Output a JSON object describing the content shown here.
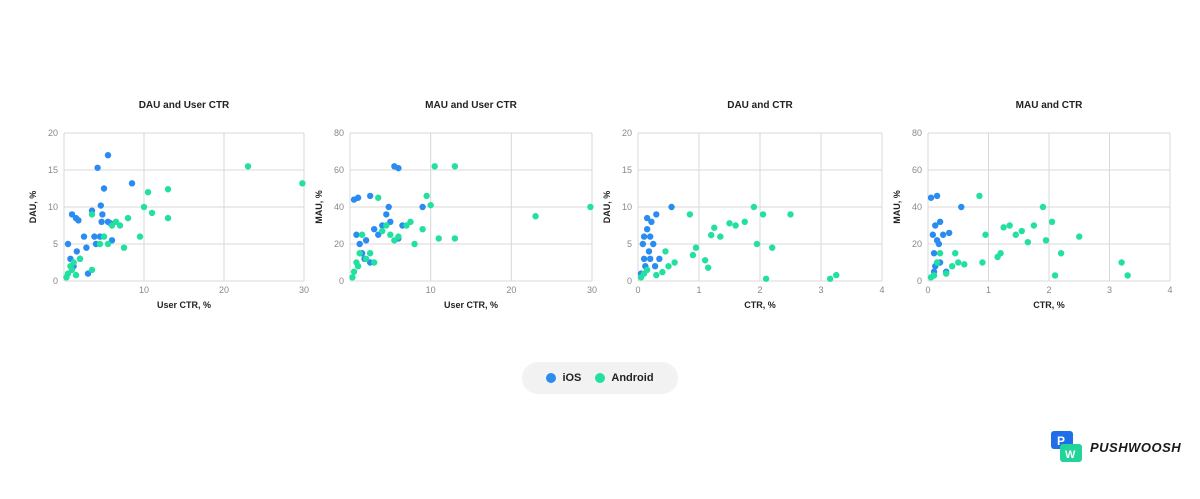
{
  "colors": {
    "ios": "#2a8cf0",
    "android": "#22e0a0",
    "brand_blue": "#1e6fe8",
    "brand_green": "#22d39a"
  },
  "legend": {
    "ios": "iOS",
    "android": "Android"
  },
  "brand": {
    "name": "PUSHWOOSH",
    "logo_letters": [
      "P",
      "W"
    ]
  },
  "chart_data": [
    {
      "type": "scatter",
      "title": "DAU and User CTR",
      "xlabel": "User CTR, %",
      "ylabel": "DAU, %",
      "xlim": [
        0,
        30
      ],
      "ylim": [
        0,
        20
      ],
      "xticks": [
        10,
        20,
        30
      ],
      "yticks": [
        0,
        5,
        10,
        15,
        20
      ],
      "grid": true,
      "series": [
        {
          "name": "iOS",
          "color": "#2a8cf0",
          "points": [
            [
              0.5,
              5
            ],
            [
              0.8,
              3
            ],
            [
              1,
              9
            ],
            [
              1.2,
              2
            ],
            [
              1.5,
              8.5
            ],
            [
              1.6,
              4
            ],
            [
              2,
              3
            ],
            [
              2.5,
              6
            ],
            [
              2.8,
              4.5
            ],
            [
              3,
              1
            ],
            [
              3.5,
              9.5
            ],
            [
              3.8,
              6
            ],
            [
              4,
              5
            ],
            [
              4.2,
              15.3
            ],
            [
              4.5,
              6
            ],
            [
              4.6,
              10.2
            ],
            [
              4.7,
              8
            ],
            [
              5,
              12.5
            ],
            [
              5.5,
              17
            ],
            [
              5.5,
              8
            ],
            [
              5.8,
              7.8
            ],
            [
              6,
              5.5
            ],
            [
              8.5,
              13.2
            ],
            [
              1.8,
              8.2
            ],
            [
              4.8,
              9
            ]
          ]
        },
        {
          "name": "Android",
          "color": "#22e0a0",
          "points": [
            [
              0.3,
              0.5
            ],
            [
              0.5,
              1
            ],
            [
              0.8,
              2
            ],
            [
              1,
              1.5
            ],
            [
              1.2,
              2.5
            ],
            [
              1.5,
              0.8
            ],
            [
              2,
              3
            ],
            [
              3.5,
              1.5
            ],
            [
              4.5,
              5
            ],
            [
              5,
              6
            ],
            [
              5.5,
              5
            ],
            [
              6,
              7.5
            ],
            [
              6.5,
              8
            ],
            [
              7,
              7.5
            ],
            [
              7.5,
              4.5
            ],
            [
              8,
              8.5
            ],
            [
              9.5,
              6
            ],
            [
              10,
              10
            ],
            [
              10.5,
              12
            ],
            [
              11,
              9.2
            ],
            [
              13,
              12.4
            ],
            [
              13,
              8.5
            ],
            [
              23,
              15.5
            ],
            [
              29.8,
              13.2
            ],
            [
              3.5,
              9
            ]
          ]
        }
      ]
    },
    {
      "type": "scatter",
      "title": "MAU and User CTR",
      "xlabel": "User CTR, %",
      "ylabel": "MAU, %",
      "xlim": [
        0,
        30
      ],
      "ylim": [
        0,
        80
      ],
      "xticks": [
        10,
        20,
        30
      ],
      "yticks": [
        0,
        20,
        40,
        60,
        80
      ],
      "grid": true,
      "series": [
        {
          "name": "iOS",
          "color": "#2a8cf0",
          "points": [
            [
              0.5,
              44
            ],
            [
              0.8,
              25
            ],
            [
              1,
              45
            ],
            [
              1.2,
              20
            ],
            [
              1.5,
              15
            ],
            [
              2,
              22
            ],
            [
              2.5,
              46
            ],
            [
              2.5,
              10
            ],
            [
              3,
              28
            ],
            [
              3.5,
              25
            ],
            [
              4,
              30
            ],
            [
              4.5,
              36
            ],
            [
              4.8,
              40
            ],
            [
              5,
              32
            ],
            [
              5.5,
              62
            ],
            [
              6,
              61
            ],
            [
              6,
              23
            ],
            [
              6.5,
              30
            ],
            [
              9,
              40
            ],
            [
              1.8,
              12
            ]
          ]
        },
        {
          "name": "Android",
          "color": "#22e0a0",
          "points": [
            [
              0.3,
              2
            ],
            [
              0.5,
              5
            ],
            [
              0.8,
              10
            ],
            [
              1,
              8
            ],
            [
              1.2,
              15
            ],
            [
              1.5,
              25
            ],
            [
              2,
              12
            ],
            [
              2.5,
              15
            ],
            [
              3,
              10
            ],
            [
              3.5,
              45
            ],
            [
              4,
              27
            ],
            [
              4.5,
              30
            ],
            [
              5,
              25
            ],
            [
              5.5,
              22
            ],
            [
              6,
              24
            ],
            [
              7,
              30
            ],
            [
              7.5,
              32
            ],
            [
              8,
              20
            ],
            [
              9,
              28
            ],
            [
              9.5,
              46
            ],
            [
              10,
              41
            ],
            [
              10.5,
              62
            ],
            [
              11,
              23
            ],
            [
              13,
              62
            ],
            [
              13,
              23
            ],
            [
              23,
              35
            ],
            [
              29.8,
              40
            ]
          ]
        }
      ]
    },
    {
      "type": "scatter",
      "title": "DAU and CTR",
      "xlabel": "CTR, %",
      "ylabel": "DAU, %",
      "xlim": [
        0,
        4
      ],
      "ylim": [
        0,
        20
      ],
      "xticks": [
        0,
        1,
        2,
        3,
        4
      ],
      "yticks": [
        0,
        5,
        10,
        15,
        20
      ],
      "grid": true,
      "series": [
        {
          "name": "iOS",
          "color": "#2a8cf0",
          "points": [
            [
              0.05,
              1
            ],
            [
              0.08,
              5
            ],
            [
              0.1,
              3
            ],
            [
              0.12,
              2
            ],
            [
              0.15,
              7
            ],
            [
              0.15,
              8.5
            ],
            [
              0.18,
              4
            ],
            [
              0.2,
              6
            ],
            [
              0.2,
              3
            ],
            [
              0.22,
              8
            ],
            [
              0.25,
              5
            ],
            [
              0.28,
              2
            ],
            [
              0.3,
              9
            ],
            [
              0.35,
              3
            ],
            [
              0.55,
              10
            ],
            [
              0.1,
              6
            ]
          ]
        },
        {
          "name": "Android",
          "color": "#22e0a0",
          "points": [
            [
              0.05,
              0.5
            ],
            [
              0.1,
              1
            ],
            [
              0.15,
              1.5
            ],
            [
              0.3,
              0.8
            ],
            [
              0.4,
              1.2
            ],
            [
              0.45,
              4
            ],
            [
              0.5,
              2
            ],
            [
              0.6,
              2.5
            ],
            [
              0.85,
              9
            ],
            [
              0.9,
              3.5
            ],
            [
              0.95,
              4.5
            ],
            [
              1.1,
              2.8
            ],
            [
              1.15,
              1.8
            ],
            [
              1.25,
              7.2
            ],
            [
              1.35,
              6
            ],
            [
              1.5,
              7.8
            ],
            [
              1.6,
              7.5
            ],
            [
              1.75,
              8
            ],
            [
              1.9,
              10
            ],
            [
              1.95,
              5
            ],
            [
              2.05,
              9
            ],
            [
              2.1,
              0.3
            ],
            [
              2.2,
              4.5
            ],
            [
              2.5,
              9
            ],
            [
              3.15,
              0.3
            ],
            [
              3.25,
              0.8
            ],
            [
              1.2,
              6.2
            ]
          ]
        }
      ]
    },
    {
      "type": "scatter",
      "title": "MAU and CTR",
      "xlabel": "CTR, %",
      "ylabel": "MAU, %",
      "xlim": [
        0,
        4
      ],
      "ylim": [
        0,
        80
      ],
      "xticks": [
        0,
        1,
        2,
        3,
        4
      ],
      "yticks": [
        0,
        20,
        40,
        60,
        80
      ],
      "grid": true,
      "series": [
        {
          "name": "iOS",
          "color": "#2a8cf0",
          "points": [
            [
              0.05,
              45
            ],
            [
              0.08,
              25
            ],
            [
              0.1,
              15
            ],
            [
              0.12,
              30
            ],
            [
              0.15,
              22
            ],
            [
              0.18,
              20
            ],
            [
              0.2,
              32
            ],
            [
              0.2,
              10
            ],
            [
              0.25,
              25
            ],
            [
              0.3,
              5
            ],
            [
              0.35,
              26
            ],
            [
              0.55,
              40
            ],
            [
              0.1,
              5
            ],
            [
              0.15,
              46
            ],
            [
              0.12,
              8
            ]
          ]
        },
        {
          "name": "Android",
          "color": "#22e0a0",
          "points": [
            [
              0.05,
              2
            ],
            [
              0.1,
              3
            ],
            [
              0.15,
              10
            ],
            [
              0.2,
              15
            ],
            [
              0.3,
              4
            ],
            [
              0.4,
              8
            ],
            [
              0.45,
              15
            ],
            [
              0.5,
              10
            ],
            [
              0.6,
              9
            ],
            [
              0.85,
              46
            ],
            [
              0.9,
              10
            ],
            [
              0.95,
              25
            ],
            [
              1.15,
              13
            ],
            [
              1.2,
              15
            ],
            [
              1.25,
              29
            ],
            [
              1.35,
              30
            ],
            [
              1.45,
              25
            ],
            [
              1.55,
              27
            ],
            [
              1.65,
              21
            ],
            [
              1.75,
              30
            ],
            [
              1.9,
              40
            ],
            [
              1.95,
              22
            ],
            [
              2.05,
              32
            ],
            [
              2.1,
              3
            ],
            [
              2.2,
              15
            ],
            [
              2.5,
              24
            ],
            [
              3.2,
              10
            ],
            [
              3.3,
              3
            ]
          ]
        }
      ]
    }
  ]
}
